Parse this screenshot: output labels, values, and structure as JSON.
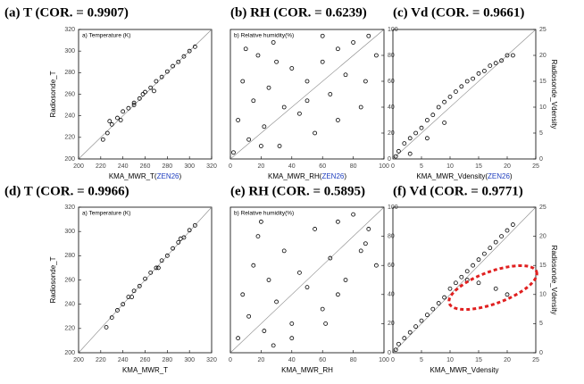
{
  "chart_data": [
    {
      "type": "scatter",
      "title": "(a)  T  (COR. = 0.9907)",
      "xlabel_parts": [
        "KMA_MWR_T(",
        "ZEN26",
        ")"
      ],
      "ylabel": "Radiosonde_T",
      "annotation": "a) Temperature (K)",
      "y_axis_side": "left",
      "color": "#000000",
      "x": [
        222,
        226,
        230,
        235,
        240,
        245,
        250,
        255,
        260,
        265,
        270,
        275,
        280,
        285,
        290,
        295,
        300,
        305,
        228,
        250,
        268,
        238,
        258
      ],
      "y": [
        218,
        224,
        232,
        238,
        244,
        247,
        252,
        256,
        262,
        266,
        272,
        276,
        281,
        286,
        290,
        295,
        300,
        304,
        235,
        250,
        263,
        236,
        260
      ],
      "xlim": [
        200,
        320
      ],
      "ylim": [
        200,
        320
      ],
      "xticks": [
        200,
        220,
        240,
        260,
        280,
        300,
        320
      ],
      "yticks": [
        200,
        220,
        240,
        260,
        280,
        300,
        320
      ]
    },
    {
      "type": "scatter",
      "title": "(b)  RH  (COR. = 0.6239)",
      "xlabel_parts": [
        "KMA_MWR_RH(",
        "ZEN26",
        ")"
      ],
      "annotation": "b) Relative humidity(%)",
      "y_axis_side": "right",
      "color": "#000000",
      "x": [
        2,
        5,
        8,
        12,
        15,
        18,
        22,
        25,
        28,
        32,
        35,
        40,
        45,
        50,
        55,
        60,
        65,
        70,
        75,
        80,
        85,
        90,
        95,
        10,
        30,
        50,
        70,
        88,
        20,
        60
      ],
      "y": [
        5,
        30,
        60,
        15,
        45,
        80,
        25,
        55,
        90,
        10,
        40,
        70,
        35,
        60,
        20,
        75,
        50,
        85,
        65,
        90,
        40,
        95,
        80,
        85,
        75,
        45,
        30,
        60,
        10,
        95
      ],
      "xlim": [
        0,
        100
      ],
      "ylim": [
        0,
        100
      ],
      "xticks": [
        0,
        20,
        40,
        60,
        80,
        100
      ],
      "yticks": [
        0,
        20,
        40,
        60,
        80,
        100
      ]
    },
    {
      "type": "scatter",
      "title": "(c)  Vd  (COR. = 0.9661)",
      "xlabel_parts": [
        "KMA_MWR_Vdensity(",
        "ZEN26",
        ")"
      ],
      "ylabel": "Radiosonde_Vdensity",
      "y_axis_side": "right",
      "color": "#000000",
      "x": [
        0.5,
        1,
        2,
        3,
        4,
        5,
        6,
        7,
        8,
        9,
        10,
        11,
        12,
        13,
        14,
        15,
        16,
        17,
        18,
        19,
        20,
        21,
        3,
        6,
        9
      ],
      "y": [
        0.5,
        1.5,
        3,
        4,
        5,
        6,
        7.5,
        8.5,
        10,
        11,
        12,
        13,
        14,
        15,
        15.5,
        16.5,
        17,
        18,
        18.5,
        19,
        20,
        20,
        1,
        4,
        7
      ],
      "xlim": [
        0,
        25
      ],
      "ylim": [
        0,
        25
      ],
      "xticks": [
        0,
        5,
        10,
        15,
        20,
        25
      ],
      "yticks": [
        0,
        5,
        10,
        15,
        20,
        25
      ]
    },
    {
      "type": "scatter",
      "title": "(d)  T  (COR. = 0.9966)",
      "xlabel_parts": [
        "KMA_MWR_T"
      ],
      "ylabel": "Radiosonde_T",
      "annotation": "a) Temperature (K)",
      "y_axis_side": "left",
      "color": "#000000",
      "x": [
        225,
        230,
        235,
        240,
        245,
        250,
        255,
        260,
        265,
        270,
        275,
        280,
        285,
        290,
        295,
        300,
        305,
        248,
        272,
        292
      ],
      "y": [
        221,
        229,
        235,
        240,
        246,
        251,
        255,
        261,
        266,
        270,
        276,
        280,
        286,
        291,
        295,
        301,
        305,
        246,
        270,
        294
      ],
      "xlim": [
        200,
        320
      ],
      "ylim": [
        200,
        320
      ],
      "xticks": [
        200,
        220,
        240,
        260,
        280,
        300,
        320
      ],
      "yticks": [
        200,
        220,
        240,
        260,
        280,
        300,
        320
      ]
    },
    {
      "type": "scatter",
      "title": "(e)  RH  (COR. = 0.5895)",
      "xlabel_parts": [
        "KMA_MWR_RH"
      ],
      "annotation": "b) Relative humidity(%)",
      "y_axis_side": "right",
      "color": "#000000",
      "x": [
        5,
        8,
        12,
        15,
        18,
        22,
        25,
        30,
        35,
        40,
        45,
        50,
        55,
        60,
        65,
        70,
        75,
        80,
        85,
        90,
        95,
        20,
        40,
        70,
        88,
        28,
        62
      ],
      "y": [
        10,
        40,
        25,
        60,
        80,
        15,
        50,
        35,
        70,
        20,
        55,
        45,
        85,
        30,
        65,
        90,
        50,
        95,
        70,
        85,
        60,
        90,
        10,
        40,
        75,
        5,
        20
      ],
      "xlim": [
        0,
        100
      ],
      "ylim": [
        0,
        100
      ],
      "xticks": [
        0,
        20,
        40,
        60,
        80,
        100
      ],
      "yticks": [
        0,
        20,
        40,
        60,
        80,
        100
      ]
    },
    {
      "type": "scatter",
      "title": "(f)  Vd  (COR. = 0.9771)",
      "xlabel_parts": [
        "KMA_MWR_Vdensity"
      ],
      "ylabel": "Radiosonde_Vdensity",
      "y_axis_side": "right",
      "color": "#000000",
      "x": [
        0.5,
        1,
        2,
        3,
        4,
        5,
        6,
        7,
        8,
        9,
        10,
        11,
        12,
        13,
        14,
        15,
        16,
        17,
        18,
        19,
        20,
        21,
        15,
        18,
        20,
        13
      ],
      "y": [
        0.5,
        1.5,
        2.5,
        3.5,
        4.5,
        5.5,
        6.5,
        7.5,
        8.5,
        9.5,
        11,
        12,
        13,
        14,
        15,
        16,
        17,
        18,
        19,
        20,
        21,
        22,
        12,
        11,
        10,
        12.5
      ],
      "xlim": [
        0,
        25
      ],
      "ylim": [
        0,
        25
      ],
      "xticks": [
        0,
        5,
        10,
        15,
        20,
        25
      ],
      "yticks": [
        0,
        5,
        10,
        15,
        20,
        25
      ]
    }
  ]
}
